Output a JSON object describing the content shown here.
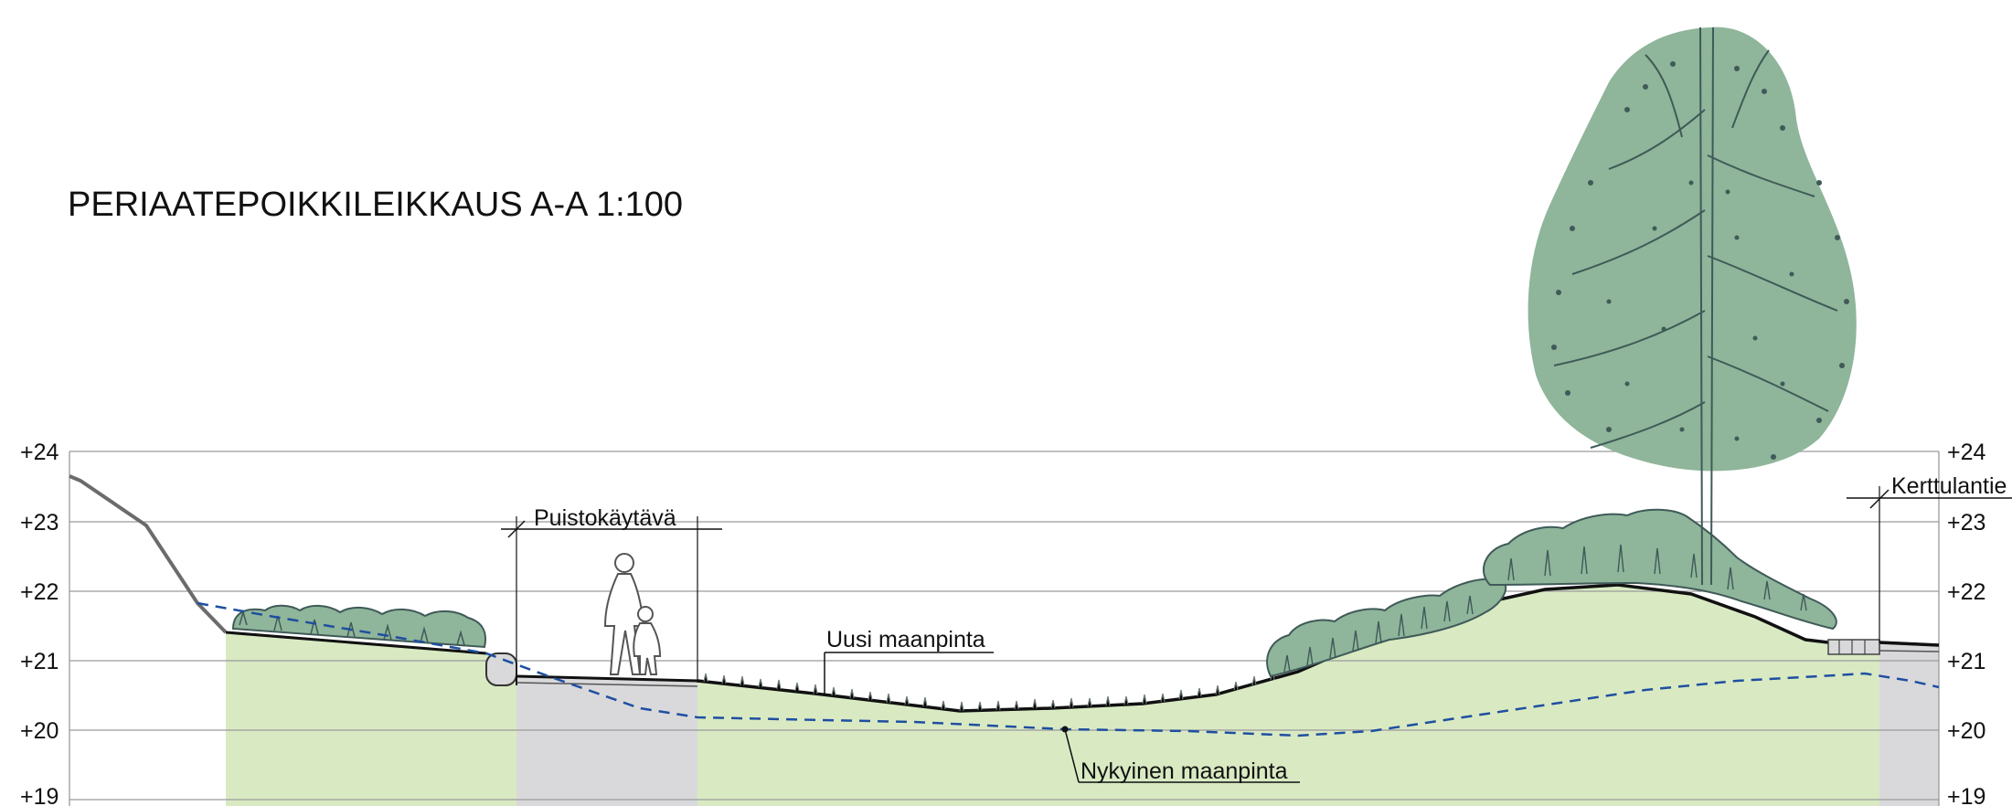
{
  "title": "PERIAATEPOIKKILEIKKAUS A-A   1:100",
  "elevations": [
    "+24",
    "+23",
    "+22",
    "+21",
    "+20",
    "+19"
  ],
  "labels": {
    "puistokaytava": "Puistokäytävä",
    "uusi_maanpinta": "Uusi maanpinta",
    "nykyinen_maanpinta": "Nykyinen maanpinta",
    "kerttulantie": "Kerttulantie"
  },
  "colors": {
    "new_ground_fill": "#d9eac3",
    "paved_fill": "#d9d9db",
    "vegetation": "#8fb59a",
    "vegetation_dark": "#3f5a58",
    "existing_ground_line": "#1f4fa0",
    "grid": "#9a9a9a"
  },
  "icons": [
    "tree-icon",
    "pedestrians-icon",
    "shrub-icon"
  ]
}
